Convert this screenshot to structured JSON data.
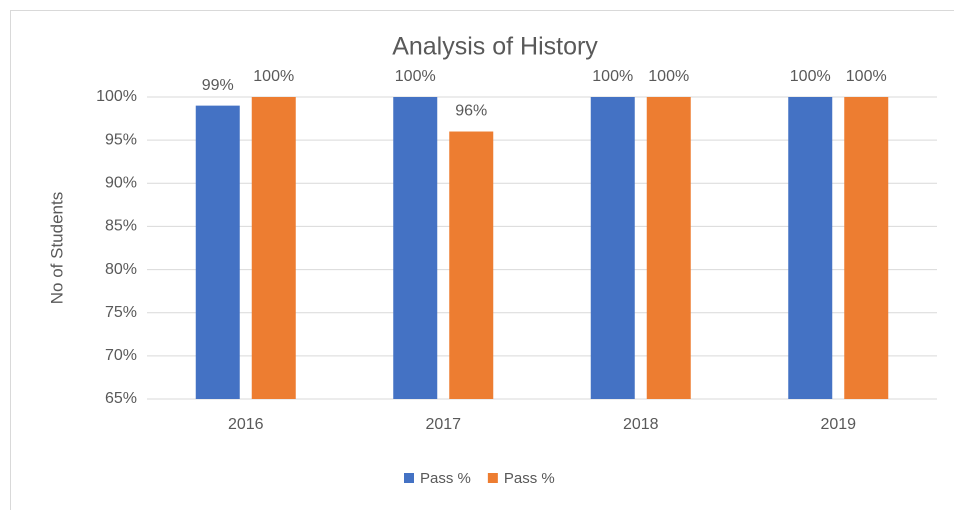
{
  "chart_data": {
    "type": "bar",
    "title": "Analysis of History",
    "y_label": "No of Students",
    "categories": [
      "2016",
      "2017",
      "2018",
      "2019"
    ],
    "series": [
      {
        "name": "Pass %",
        "color": "#4472c4",
        "values": [
          99,
          100,
          100,
          100
        ],
        "value_labels": [
          "99%",
          "100%",
          "100%",
          "100%"
        ]
      },
      {
        "name": "Pass %",
        "color": "#ed7d31",
        "values": [
          100,
          96,
          100,
          100
        ],
        "value_labels": [
          "100%",
          "96%",
          "100%",
          "100%"
        ]
      }
    ],
    "ylim": [
      65,
      100
    ],
    "yticks": [
      {
        "value": 65,
        "label": "65%"
      },
      {
        "value": 70,
        "label": "70%"
      },
      {
        "value": 75,
        "label": "75%"
      },
      {
        "value": 80,
        "label": "80%"
      },
      {
        "value": 85,
        "label": "85%"
      },
      {
        "value": 90,
        "label": "90%"
      },
      {
        "value": 95,
        "label": "95%"
      },
      {
        "value": 100,
        "label": "100%"
      }
    ],
    "grid": true,
    "legend": "bottom"
  }
}
